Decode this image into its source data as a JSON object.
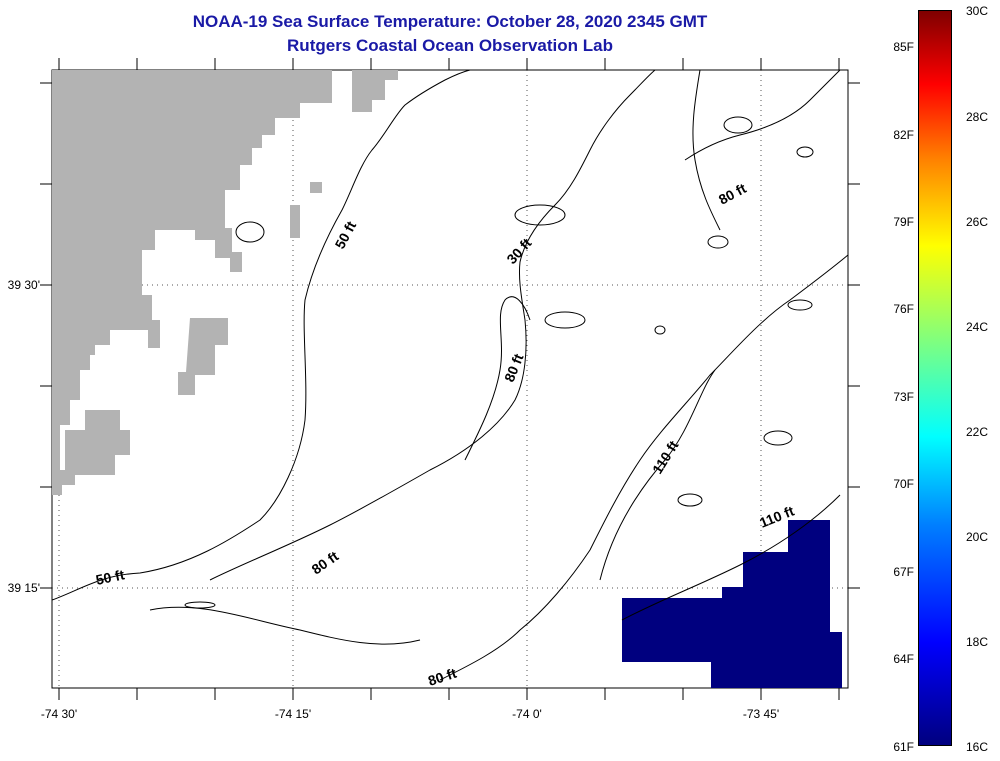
{
  "title": {
    "line1": "NOAA-19 Sea Surface Temperature:  October 28, 2020 2345 GMT",
    "line2": "Rutgers Coastal Ocean Observation Lab"
  },
  "axes": {
    "x_ticks": [
      "-74 30'",
      "-74 15'",
      "-74 0'",
      "-73 45'"
    ],
    "y_ticks": [
      "39 30'",
      "39 15'"
    ]
  },
  "contour_labels": [
    "50 ft",
    "30 ft",
    "80 ft",
    "80 ft",
    "110 ft",
    "110 ft",
    "80 ft",
    "50 ft",
    "80 ft"
  ],
  "colorbar": {
    "fahrenheit": [
      "61F",
      "64F",
      "67F",
      "70F",
      "73F",
      "76F",
      "79F",
      "82F",
      "85F"
    ],
    "celsius": [
      "16C",
      "18C",
      "20C",
      "22C",
      "24C",
      "26C",
      "28C",
      "30C"
    ]
  },
  "colors": {
    "title": "#1a1aa6",
    "land": "#b3b3b3",
    "sst_patch": "#00007f"
  }
}
